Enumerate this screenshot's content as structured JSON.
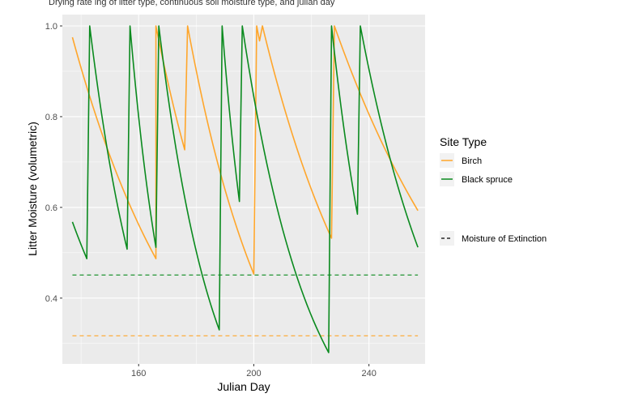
{
  "caption": "Drying rate ing of litter type, continuous soil moisture type, and julian day",
  "chart_data": {
    "type": "line",
    "xlabel": "Julian Day",
    "ylabel": "Litter Moisture (volumetric)",
    "xlim": [
      133.5,
      259.5
    ],
    "ylim": [
      0.255,
      1.025
    ],
    "x_ticks": [
      160,
      200,
      240
    ],
    "y_ticks": [
      0.4,
      0.6,
      0.8,
      1.0
    ],
    "x_tick_labels": [
      "160",
      "200",
      "240"
    ],
    "y_tick_labels": [
      "0.4",
      "0.6",
      "0.8",
      "1.0"
    ],
    "grid": true,
    "panel_background": "#ebebeb",
    "legend": {
      "position": "right",
      "title": "Site Type",
      "entries": [
        {
          "label": "Birch",
          "color": "#ffa62b",
          "linetype": "solid"
        },
        {
          "label": "Black spruce",
          "color": "#0a8a1e",
          "linetype": "solid"
        }
      ],
      "extra_entry": {
        "label": "Moisture of Extinction",
        "color": "#000000",
        "linetype": "dashed"
      }
    },
    "series": [
      {
        "name": "Birch",
        "color": "#ffa62b",
        "segments": [
          {
            "start": [
              137,
              0.975
            ],
            "end": [
              166,
              0.487
            ]
          },
          {
            "start": [
              166,
              1.0
            ],
            "end": [
              176,
              0.727
            ]
          },
          {
            "start": [
              177,
              1.0
            ],
            "end": [
              200,
              0.453
            ]
          },
          {
            "start": [
              201,
              1.0
            ],
            "end": [
              202,
              0.967
            ]
          },
          {
            "start": [
              203,
              1.0
            ],
            "end": [
              227,
              0.532
            ]
          },
          {
            "start": [
              228,
              1.0
            ],
            "end": [
              257,
              0.593
            ]
          }
        ]
      },
      {
        "name": "Black spruce",
        "color": "#0a8a1e",
        "segments": [
          {
            "start": [
              137,
              0.568
            ],
            "end": [
              142,
              0.487
            ]
          },
          {
            "start": [
              143,
              1.0
            ],
            "end": [
              156,
              0.508
            ]
          },
          {
            "start": [
              157,
              1.0
            ],
            "end": [
              166,
              0.512
            ]
          },
          {
            "start": [
              167,
              1.0
            ],
            "end": [
              188,
              0.33
            ]
          },
          {
            "start": [
              189,
              1.0
            ],
            "end": [
              195,
              0.613
            ]
          },
          {
            "start": [
              196,
              1.0
            ],
            "end": [
              226,
              0.28
            ]
          },
          {
            "start": [
              227,
              1.0
            ],
            "end": [
              236,
              0.585
            ]
          },
          {
            "start": [
              237,
              1.0
            ],
            "end": [
              257,
              0.512
            ]
          }
        ]
      }
    ],
    "reference_lines": [
      {
        "series": "Black spruce",
        "y": 0.451,
        "color": "#0a8a1e",
        "linetype": "dashed",
        "x_range": [
          137,
          257
        ]
      },
      {
        "series": "Birch",
        "y": 0.317,
        "color": "#ffa62b",
        "linetype": "dashed",
        "x_range": [
          137,
          257
        ]
      }
    ]
  }
}
